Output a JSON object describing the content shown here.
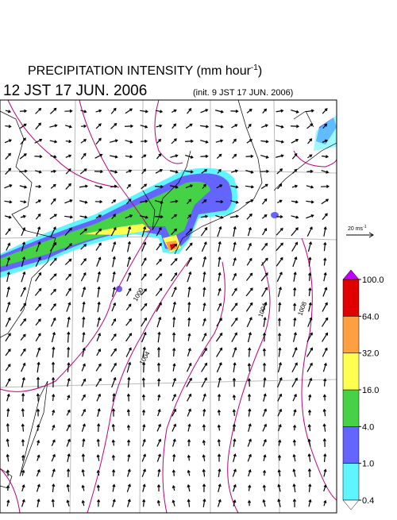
{
  "header": {
    "title_text": "PRECIPITATION INTENSITY (mm hour",
    "title_exponent": "-1",
    "title_close": ")",
    "valid_time": "12 JST 17 JUN. 2006",
    "init_time": "(init. 9 JST 17 JUN. 2006)"
  },
  "scale_vector": {
    "label": "20 ms",
    "exponent": "-1"
  },
  "isobar_labels": [
    "1000",
    "1004",
    "1004",
    "1008"
  ],
  "legend": {
    "levels": [
      {
        "value": 0.4,
        "label": "0.4"
      },
      {
        "value": 1,
        "label": "1.0"
      },
      {
        "value": 4,
        "label": "4.0"
      },
      {
        "value": 16,
        "label": "16.0"
      },
      {
        "value": 32,
        "label": "32.0"
      },
      {
        "value": 64,
        "label": "64.0"
      },
      {
        "value": 100,
        "label": "100.0"
      }
    ],
    "colors": [
      "#5ff5ff",
      "#6464ff",
      "#46d246",
      "#ffff50",
      "#ffa040",
      "#e00000"
    ],
    "under_color": "#ffffff",
    "over_color": "#c000ff"
  }
}
